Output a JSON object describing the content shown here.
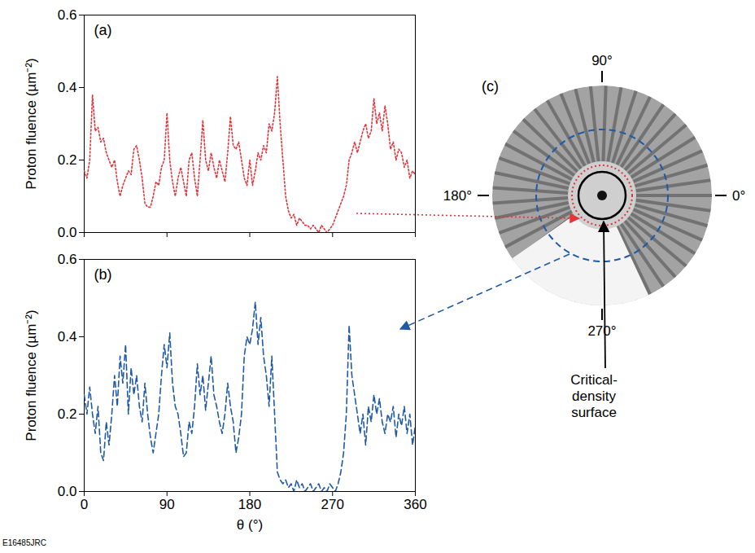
{
  "chart_data": [
    {
      "type": "line",
      "panel_label": "(a)",
      "y_label": "Proton fluence (µm⁻²)",
      "xlim": [
        0,
        360
      ],
      "xticks": [
        0,
        90,
        180,
        270,
        360
      ],
      "ylim": [
        0,
        0.6
      ],
      "yticks": [
        {
          "value": 0,
          "label": "0.0"
        },
        0.2,
        0.4,
        0.6
      ],
      "tick_labels": "y",
      "x": [
        0,
        3,
        6,
        9,
        12,
        15,
        18,
        21,
        24,
        27,
        30,
        33,
        36,
        39,
        42,
        45,
        48,
        51,
        54,
        57,
        60,
        63,
        66,
        69,
        72,
        75,
        78,
        81,
        84,
        87,
        90,
        93,
        96,
        99,
        102,
        105,
        108,
        111,
        114,
        117,
        120,
        123,
        126,
        129,
        132,
        135,
        138,
        141,
        144,
        147,
        150,
        153,
        156,
        159,
        162,
        165,
        168,
        171,
        174,
        177,
        180,
        183,
        186,
        189,
        192,
        195,
        198,
        201,
        204,
        207,
        210,
        213,
        216,
        219,
        222,
        225,
        228,
        231,
        234,
        237,
        240,
        243,
        246,
        249,
        252,
        255,
        258,
        261,
        264,
        267,
        270,
        273,
        276,
        279,
        282,
        285,
        288,
        291,
        294,
        297,
        300,
        303,
        306,
        309,
        312,
        315,
        318,
        321,
        324,
        327,
        330,
        333,
        336,
        339,
        342,
        345,
        348,
        351,
        354,
        357,
        360
      ],
      "series": [
        {
          "color": "#e2343a",
          "line_style": "dotted",
          "values": [
            0.17,
            0.15,
            0.2,
            0.38,
            0.28,
            0.29,
            0.25,
            0.26,
            0.22,
            0.2,
            0.18,
            0.2,
            0.14,
            0.1,
            0.13,
            0.15,
            0.17,
            0.16,
            0.23,
            0.24,
            0.2,
            0.15,
            0.08,
            0.07,
            0.07,
            0.1,
            0.14,
            0.13,
            0.18,
            0.2,
            0.33,
            0.2,
            0.14,
            0.1,
            0.15,
            0.18,
            0.14,
            0.1,
            0.2,
            0.22,
            0.15,
            0.1,
            0.2,
            0.31,
            0.2,
            0.17,
            0.22,
            0.18,
            0.15,
            0.2,
            0.17,
            0.14,
            0.22,
            0.32,
            0.24,
            0.23,
            0.25,
            0.2,
            0.15,
            0.13,
            0.2,
            0.13,
            0.17,
            0.22,
            0.2,
            0.24,
            0.22,
            0.3,
            0.28,
            0.33,
            0.43,
            0.3,
            0.2,
            0.1,
            0.06,
            0.04,
            0.05,
            0.02,
            0.04,
            0.03,
            0.02,
            0.02,
            0.01,
            0.02,
            0.01,
            0,
            0.02,
            0.01,
            0,
            0.01,
            0.02,
            0.04,
            0.06,
            0.08,
            0.1,
            0.13,
            0.2,
            0.22,
            0.25,
            0.22,
            0.25,
            0.28,
            0.3,
            0.26,
            0.28,
            0.37,
            0.3,
            0.33,
            0.28,
            0.35,
            0.3,
            0.23,
            0.25,
            0.2,
            0.23,
            0.22,
            0.18,
            0.2,
            0.15,
            0.17,
            0.16
          ]
        }
      ]
    },
    {
      "type": "line",
      "panel_label": "(b)",
      "y_label": "Proton fluence (µm⁻²)",
      "x_label": "θ (°)",
      "xlim": [
        0,
        360
      ],
      "xticks": [
        0,
        90,
        180,
        270,
        360
      ],
      "ylim": [
        0,
        0.6
      ],
      "yticks": [
        {
          "value": 0,
          "label": "0.0"
        },
        0.2,
        0.4,
        0.6
      ],
      "x": [
        0,
        3,
        6,
        9,
        12,
        15,
        18,
        21,
        24,
        27,
        30,
        33,
        36,
        39,
        42,
        45,
        48,
        51,
        54,
        57,
        60,
        63,
        66,
        69,
        72,
        75,
        78,
        81,
        84,
        87,
        90,
        93,
        96,
        99,
        102,
        105,
        108,
        111,
        114,
        117,
        120,
        123,
        126,
        129,
        132,
        135,
        138,
        141,
        144,
        147,
        150,
        153,
        156,
        159,
        162,
        165,
        168,
        171,
        174,
        177,
        180,
        183,
        186,
        189,
        192,
        195,
        198,
        201,
        204,
        207,
        210,
        213,
        216,
        219,
        222,
        225,
        228,
        231,
        234,
        237,
        240,
        243,
        246,
        249,
        252,
        255,
        258,
        261,
        264,
        267,
        270,
        273,
        276,
        279,
        282,
        285,
        288,
        291,
        294,
        297,
        300,
        303,
        306,
        309,
        312,
        315,
        318,
        321,
        324,
        327,
        330,
        333,
        336,
        339,
        342,
        345,
        348,
        351,
        354,
        357,
        360
      ],
      "series": [
        {
          "color": "#1f5aa6",
          "line_style": "dashed",
          "values": [
            0.25,
            0.2,
            0.27,
            0.2,
            0.15,
            0.22,
            0.1,
            0.08,
            0.18,
            0.12,
            0.2,
            0.3,
            0.22,
            0.35,
            0.28,
            0.38,
            0.2,
            0.32,
            0.25,
            0.3,
            0.22,
            0.18,
            0.28,
            0.2,
            0.14,
            0.1,
            0.15,
            0.2,
            0.3,
            0.38,
            0.32,
            0.41,
            0.28,
            0.22,
            0.2,
            0.15,
            0.09,
            0.1,
            0.18,
            0.15,
            0.22,
            0.33,
            0.25,
            0.3,
            0.21,
            0.28,
            0.35,
            0.25,
            0.22,
            0.18,
            0.15,
            0.2,
            0.28,
            0.22,
            0.18,
            0.1,
            0.14,
            0.2,
            0.35,
            0.4,
            0.38,
            0.42,
            0.49,
            0.38,
            0.45,
            0.35,
            0.3,
            0.22,
            0.35,
            0.2,
            0.05,
            0.03,
            0.02,
            0.03,
            0.01,
            0.02,
            0,
            0.03,
            0.01,
            0.02,
            0,
            0.01,
            0.02,
            0,
            0.01,
            0.02,
            0,
            0.01,
            0,
            0.02,
            0.01,
            0,
            0.02,
            0.05,
            0.1,
            0.2,
            0.43,
            0.3,
            0.25,
            0.2,
            0.15,
            0.2,
            0.12,
            0.22,
            0.18,
            0.25,
            0.2,
            0.24,
            0.18,
            0.15,
            0.2,
            0.18,
            0.22,
            0.14,
            0.2,
            0.17,
            0.22,
            0.15,
            0.2,
            0.12,
            0.17
          ]
        }
      ]
    }
  ],
  "image": {
    "panel_label": "(c)",
    "angle_labels": [
      {
        "angle": 90,
        "label": "90°"
      },
      {
        "angle": 0,
        "label": "0°"
      },
      {
        "angle": 180,
        "label": "180°"
      },
      {
        "angle": 270,
        "label": "270°"
      }
    ],
    "annotation": "Critical-density surface"
  },
  "figure_id": "E16485JRC"
}
